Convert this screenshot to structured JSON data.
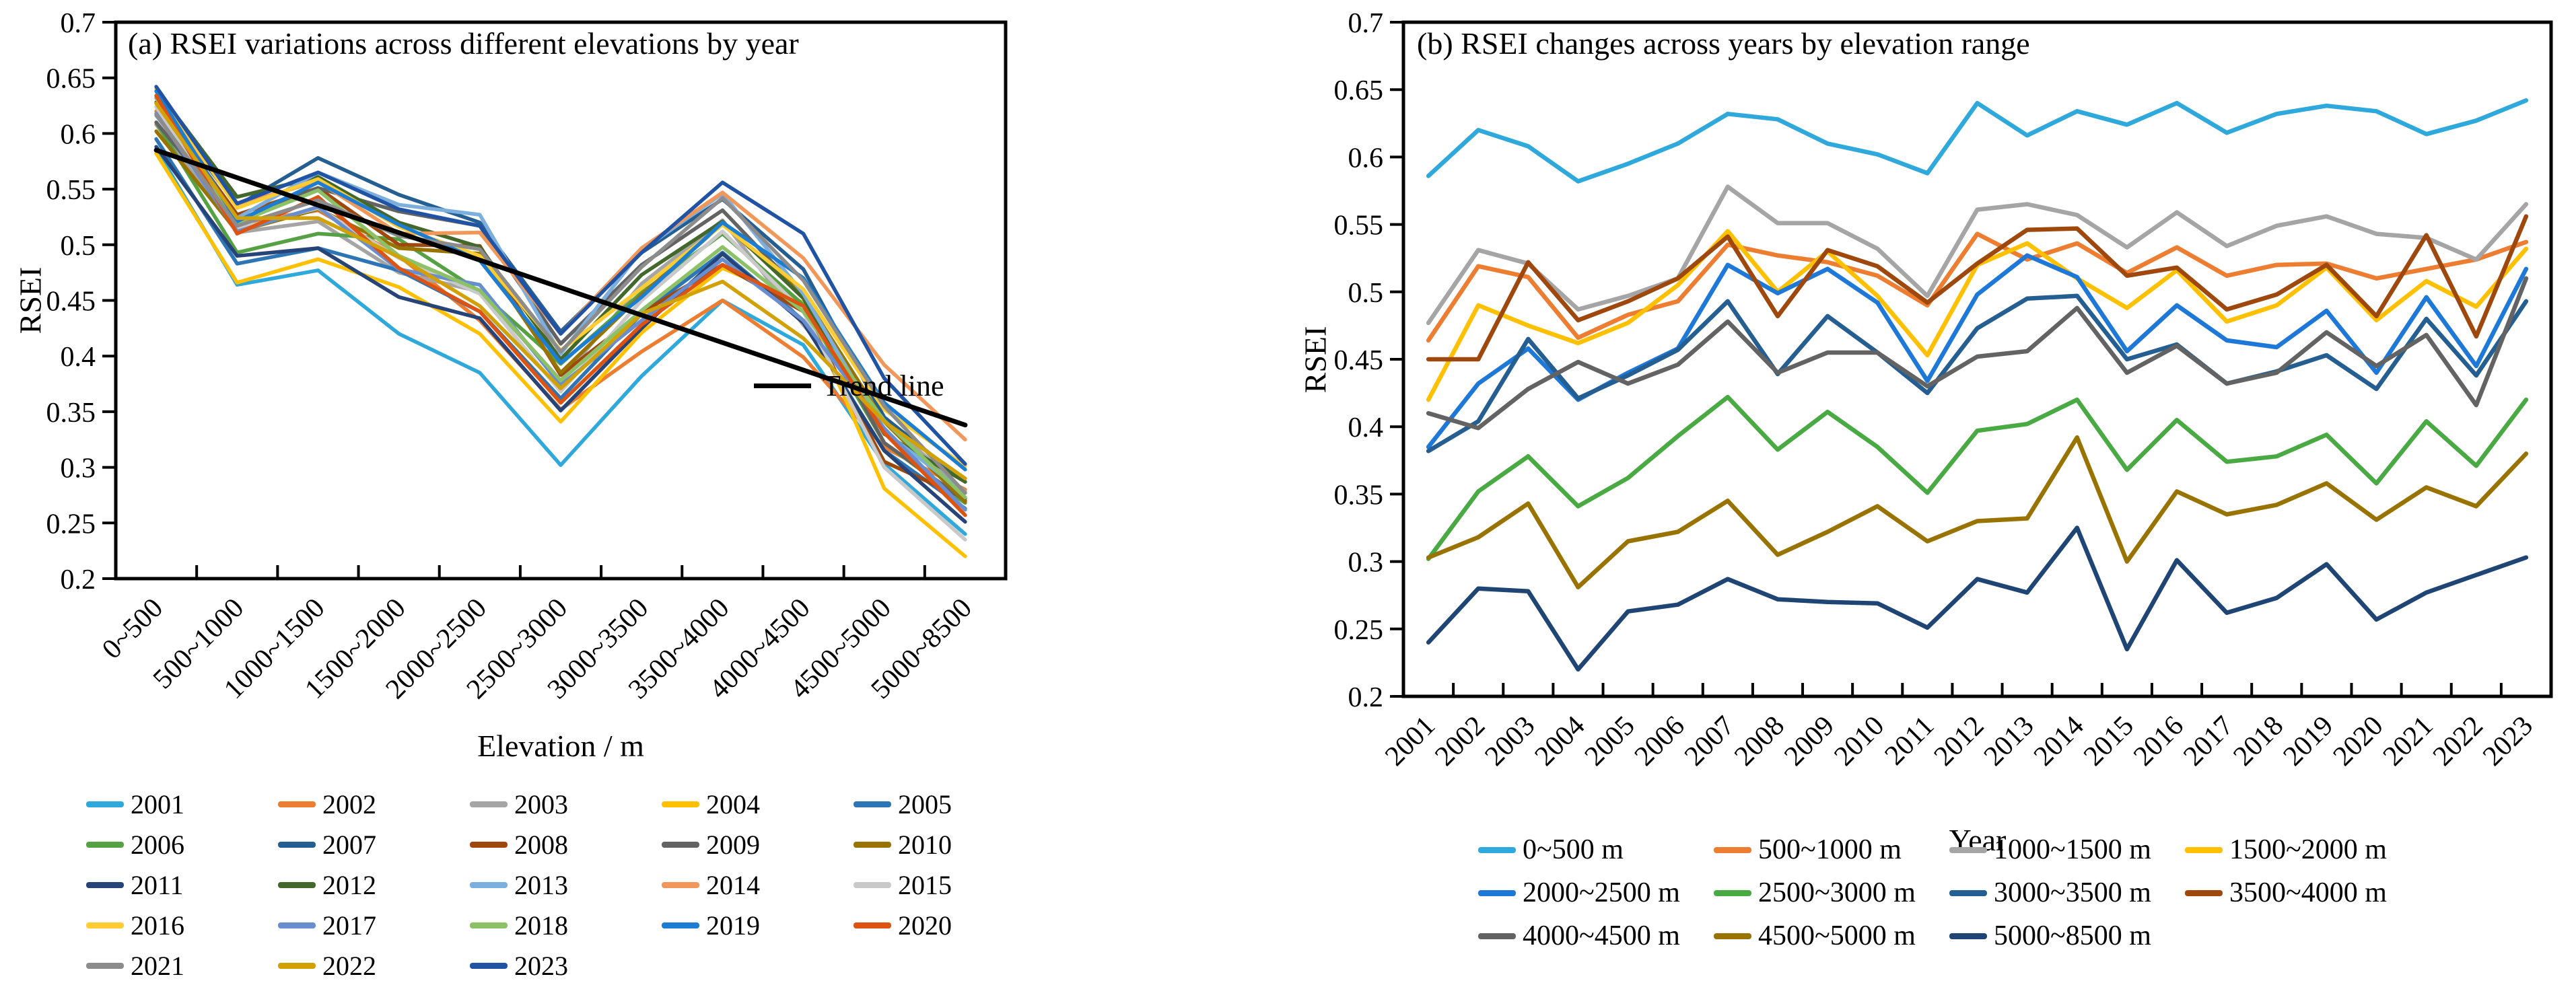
{
  "page": {
    "background": "#ffffff",
    "text_color": "#000000"
  },
  "chart_data": [
    {
      "id": "panel_a",
      "type": "line",
      "title": "(a) RSEI variations across different elevations by year",
      "xlabel": "Elevation / m",
      "ylabel": "RSEI",
      "ylim": [
        0.2,
        0.7
      ],
      "ytick_step": 0.05,
      "grid": false,
      "legend_position": "bottom",
      "legend_columns": 5,
      "categories": [
        "0~500",
        "500~1000",
        "1000~1500",
        "1500~2000",
        "2000~2500",
        "2500~3000",
        "3000~3500",
        "3500~4000",
        "4000~4500",
        "4500~5000",
        "5000~8500"
      ],
      "series": [
        {
          "name": "2001",
          "color": "#2FA8DC",
          "values": [
            0.586,
            0.464,
            0.477,
            0.42,
            0.385,
            0.302,
            0.382,
            0.45,
            0.41,
            0.303,
            0.24
          ]
        },
        {
          "name": "2002",
          "color": "#ED7D31",
          "values": [
            0.62,
            0.519,
            0.531,
            0.49,
            0.432,
            0.352,
            0.404,
            0.45,
            0.399,
            0.318,
            0.28
          ]
        },
        {
          "name": "2003",
          "color": "#A5A5A5",
          "values": [
            0.608,
            0.511,
            0.521,
            0.475,
            0.458,
            0.378,
            0.465,
            0.522,
            0.428,
            0.343,
            0.278
          ]
        },
        {
          "name": "2004",
          "color": "#FFC000",
          "values": [
            0.582,
            0.466,
            0.487,
            0.462,
            0.42,
            0.341,
            0.421,
            0.479,
            0.448,
            0.281,
            0.22
          ]
        },
        {
          "name": "2005",
          "color": "#2E75B6",
          "values": [
            0.595,
            0.483,
            0.497,
            0.477,
            0.44,
            0.362,
            0.438,
            0.493,
            0.432,
            0.315,
            0.263
          ]
        },
        {
          "name": "2006",
          "color": "#56A144",
          "values": [
            0.61,
            0.493,
            0.51,
            0.505,
            0.458,
            0.393,
            0.457,
            0.51,
            0.446,
            0.322,
            0.268
          ]
        },
        {
          "name": "2007",
          "color": "#255E91",
          "values": [
            0.632,
            0.535,
            0.578,
            0.545,
            0.52,
            0.422,
            0.493,
            0.541,
            0.478,
            0.345,
            0.287
          ]
        },
        {
          "name": "2008",
          "color": "#9E480E",
          "values": [
            0.628,
            0.527,
            0.551,
            0.5,
            0.499,
            0.383,
            0.439,
            0.482,
            0.44,
            0.305,
            0.272
          ]
        },
        {
          "name": "2009",
          "color": "#636363",
          "values": [
            0.61,
            0.522,
            0.551,
            0.53,
            0.517,
            0.411,
            0.482,
            0.531,
            0.455,
            0.322,
            0.27
          ]
        },
        {
          "name": "2010",
          "color": "#997300",
          "values": [
            0.602,
            0.512,
            0.532,
            0.497,
            0.492,
            0.385,
            0.455,
            0.519,
            0.455,
            0.341,
            0.269
          ]
        },
        {
          "name": "2011",
          "color": "#264478",
          "values": [
            0.588,
            0.49,
            0.497,
            0.453,
            0.434,
            0.351,
            0.425,
            0.492,
            0.43,
            0.315,
            0.251
          ]
        },
        {
          "name": "2012",
          "color": "#43682B",
          "values": [
            0.64,
            0.543,
            0.561,
            0.52,
            0.498,
            0.397,
            0.473,
            0.521,
            0.452,
            0.33,
            0.287
          ]
        },
        {
          "name": "2013",
          "color": "#7CAFDD",
          "values": [
            0.616,
            0.524,
            0.565,
            0.536,
            0.527,
            0.402,
            0.495,
            0.546,
            0.456,
            0.332,
            0.277
          ]
        },
        {
          "name": "2014",
          "color": "#F1975A",
          "values": [
            0.634,
            0.536,
            0.557,
            0.51,
            0.511,
            0.42,
            0.497,
            0.547,
            0.488,
            0.392,
            0.325
          ]
        },
        {
          "name": "2015",
          "color": "#C9C9C9",
          "values": [
            0.624,
            0.514,
            0.533,
            0.488,
            0.456,
            0.368,
            0.45,
            0.512,
            0.44,
            0.3,
            0.235
          ]
        },
        {
          "name": "2016",
          "color": "#FFCD33",
          "values": [
            0.64,
            0.533,
            0.559,
            0.516,
            0.49,
            0.405,
            0.461,
            0.518,
            0.46,
            0.352,
            0.301
          ]
        },
        {
          "name": "2017",
          "color": "#698ED0",
          "values": [
            0.618,
            0.512,
            0.534,
            0.478,
            0.464,
            0.374,
            0.432,
            0.487,
            0.432,
            0.335,
            0.262
          ]
        },
        {
          "name": "2018",
          "color": "#8CC168",
          "values": [
            0.632,
            0.52,
            0.549,
            0.49,
            0.459,
            0.378,
            0.441,
            0.498,
            0.44,
            0.342,
            0.273
          ]
        },
        {
          "name": "2019",
          "color": "#1D7DD3",
          "values": [
            0.638,
            0.521,
            0.556,
            0.518,
            0.486,
            0.394,
            0.453,
            0.52,
            0.47,
            0.358,
            0.298
          ]
        },
        {
          "name": "2020",
          "color": "#DC5312",
          "values": [
            0.634,
            0.51,
            0.543,
            0.479,
            0.44,
            0.358,
            0.428,
            0.482,
            0.445,
            0.331,
            0.257
          ]
        },
        {
          "name": "2021",
          "color": "#8C8C8C",
          "values": [
            0.617,
            0.517,
            0.54,
            0.508,
            0.496,
            0.404,
            0.48,
            0.542,
            0.468,
            0.355,
            0.277
          ]
        },
        {
          "name": "2022",
          "color": "#D2A106",
          "values": [
            0.627,
            0.524,
            0.524,
            0.489,
            0.445,
            0.371,
            0.438,
            0.467,
            0.416,
            0.341,
            0.29
          ]
        },
        {
          "name": "2023",
          "color": "#2053A4",
          "values": [
            0.642,
            0.537,
            0.565,
            0.532,
            0.517,
            0.42,
            0.493,
            0.556,
            0.51,
            0.38,
            0.303
          ]
        }
      ],
      "trend_line": {
        "label": "Trend line",
        "color": "#000000",
        "start_value": 0.585,
        "end_value": 0.338
      }
    },
    {
      "id": "panel_b",
      "type": "line",
      "title": "(b) RSEI changes across years by elevation range",
      "xlabel": "Year",
      "ylabel": "RSEI",
      "ylim": [
        0.2,
        0.7
      ],
      "ytick_step": 0.05,
      "grid": false,
      "legend_position": "bottom",
      "legend_columns": 4,
      "categories": [
        "2001",
        "2002",
        "2003",
        "2004",
        "2005",
        "2006",
        "2007",
        "2008",
        "2009",
        "2010",
        "2011",
        "2012",
        "2013",
        "2014",
        "2015",
        "2016",
        "2017",
        "2018",
        "2019",
        "2020",
        "2021",
        "2022",
        "2023"
      ],
      "series": [
        {
          "name": "0~500 m",
          "color": "#2FA8DC",
          "values": [
            0.586,
            0.62,
            0.608,
            0.582,
            0.595,
            0.61,
            0.632,
            0.628,
            0.61,
            0.602,
            0.588,
            0.64,
            0.616,
            0.634,
            0.624,
            0.64,
            0.618,
            0.632,
            0.638,
            0.634,
            0.617,
            0.627,
            0.642
          ]
        },
        {
          "name": "500~1000 m",
          "color": "#ED7D31",
          "values": [
            0.464,
            0.519,
            0.511,
            0.466,
            0.483,
            0.493,
            0.535,
            0.527,
            0.522,
            0.512,
            0.49,
            0.543,
            0.524,
            0.536,
            0.514,
            0.533,
            0.512,
            0.52,
            0.521,
            0.51,
            0.517,
            0.524,
            0.537
          ]
        },
        {
          "name": "1000~1500 m",
          "color": "#A5A5A5",
          "values": [
            0.477,
            0.531,
            0.521,
            0.487,
            0.497,
            0.51,
            0.578,
            0.551,
            0.551,
            0.532,
            0.497,
            0.561,
            0.565,
            0.557,
            0.533,
            0.559,
            0.534,
            0.549,
            0.556,
            0.543,
            0.54,
            0.524,
            0.565
          ]
        },
        {
          "name": "1500~2000 m",
          "color": "#FFC000",
          "values": [
            0.42,
            0.49,
            0.475,
            0.462,
            0.477,
            0.505,
            0.545,
            0.5,
            0.53,
            0.497,
            0.453,
            0.52,
            0.536,
            0.51,
            0.488,
            0.516,
            0.478,
            0.49,
            0.518,
            0.479,
            0.508,
            0.489,
            0.532
          ]
        },
        {
          "name": "2000~2500 m",
          "color": "#1E78D7",
          "values": [
            0.385,
            0.432,
            0.458,
            0.42,
            0.44,
            0.458,
            0.52,
            0.499,
            0.517,
            0.492,
            0.434,
            0.498,
            0.527,
            0.511,
            0.456,
            0.49,
            0.464,
            0.459,
            0.486,
            0.44,
            0.496,
            0.445,
            0.517
          ]
        },
        {
          "name": "2500~3000 m",
          "color": "#49A942",
          "values": [
            0.302,
            0.352,
            0.378,
            0.341,
            0.362,
            0.393,
            0.422,
            0.383,
            0.411,
            0.385,
            0.351,
            0.397,
            0.402,
            0.42,
            0.368,
            0.405,
            0.374,
            0.378,
            0.394,
            0.358,
            0.404,
            0.371,
            0.42
          ]
        },
        {
          "name": "3000~3500 m",
          "color": "#255E91",
          "values": [
            0.382,
            0.404,
            0.465,
            0.421,
            0.438,
            0.457,
            0.493,
            0.439,
            0.482,
            0.455,
            0.425,
            0.473,
            0.495,
            0.497,
            0.45,
            0.461,
            0.432,
            0.441,
            0.453,
            0.428,
            0.48,
            0.438,
            0.493
          ]
        },
        {
          "name": "3500~4000 m",
          "color": "#9E480E",
          "values": [
            0.45,
            0.45,
            0.522,
            0.479,
            0.493,
            0.51,
            0.541,
            0.482,
            0.531,
            0.519,
            0.492,
            0.521,
            0.546,
            0.547,
            0.512,
            0.518,
            0.487,
            0.498,
            0.52,
            0.482,
            0.542,
            0.467,
            0.556
          ]
        },
        {
          "name": "4000~4500 m",
          "color": "#636363",
          "values": [
            0.41,
            0.399,
            0.428,
            0.448,
            0.432,
            0.446,
            0.478,
            0.44,
            0.455,
            0.455,
            0.43,
            0.452,
            0.456,
            0.488,
            0.44,
            0.46,
            0.432,
            0.44,
            0.47,
            0.445,
            0.468,
            0.416,
            0.51
          ]
        },
        {
          "name": "4500~5000 m",
          "color": "#997300",
          "values": [
            0.303,
            0.318,
            0.343,
            0.281,
            0.315,
            0.322,
            0.345,
            0.305,
            0.322,
            0.341,
            0.315,
            0.33,
            0.332,
            0.392,
            0.3,
            0.352,
            0.335,
            0.342,
            0.358,
            0.331,
            0.355,
            0.341,
            0.38
          ]
        },
        {
          "name": "5000~8500 m",
          "color": "#1F4575",
          "values": [
            0.24,
            0.28,
            0.278,
            0.22,
            0.263,
            0.268,
            0.287,
            0.272,
            0.27,
            0.269,
            0.251,
            0.287,
            0.277,
            0.325,
            0.235,
            0.301,
            0.262,
            0.273,
            0.298,
            0.257,
            0.277,
            0.29,
            0.303
          ]
        }
      ]
    }
  ]
}
